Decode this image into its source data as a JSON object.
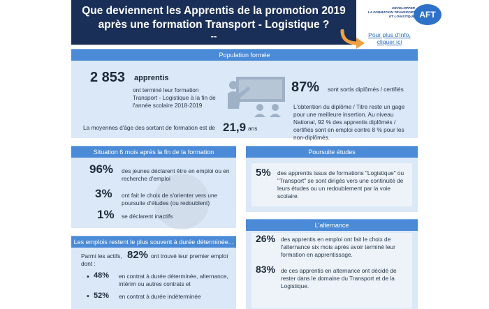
{
  "header": {
    "title_line1": "Que deviennent les Apprentis de la promotion 2019",
    "title_line2": "après une formation Transport - Logistique ?",
    "title_line3": "--"
  },
  "logo": {
    "tagline_1": "DÉVELOPPER",
    "tagline_2": "LA FORMATION TRANSPORT",
    "tagline_3": "ET LOGISTIQUE",
    "brand": "AFT"
  },
  "info_link": "Pour plus d'info, cliquer ici",
  "population": {
    "title": "Population formée",
    "count": "2 853",
    "count_label": "apprentis",
    "count_desc": "ont terminé leur formation Transport - Logistique à la fin de l'année scolaire 2018-2019",
    "age_label": "La moyennes d'âge des sortant de formation est de",
    "age_value": "21,9",
    "age_unit": "ans",
    "graduated_pct": "87%",
    "graduated_label": "sont sortis diplômés / certifiés",
    "graduated_desc": "L'obtention du diplôme / Titre reste un gage pour une meilleure insertion. Au niveau National, 92 % des apprentis diplômés / certifiés sont en emploi contre 8 % pour les non-diplômés."
  },
  "situation": {
    "title": "Situation 6 mois après la fin de la formation",
    "items": [
      {
        "pct": "96%",
        "text": "des jeunes déclarent être en emploi ou en recherche d'emploi"
      },
      {
        "pct": "3%",
        "text": "ont fait le choix de s'orienter vers une poursuite d'études (ou redoublent)"
      },
      {
        "pct": "1%",
        "text": "se déclarent inactifs"
      }
    ]
  },
  "contracts": {
    "title": "Les emplois restent le plus souvent à durée déterminée...",
    "intro_a": "Parmi les actifs,",
    "intro_pct": "82%",
    "intro_b": "ont trouvé leur premier emploi dont :",
    "items": [
      {
        "pct": "48%",
        "text": "en contrat à durée déterminée, alternance, intérim ou autres contrats et"
      },
      {
        "pct": "52%",
        "text": "en contrat à durée indéterminée"
      }
    ]
  },
  "studies": {
    "title": "Poursuite études",
    "pct": "5%",
    "text": "des apprentis issus de formations \"Logistique\" ou \"Transport\" se sont dirigés vers une continuité de leurs études ou un redoublement par la voie scolaire."
  },
  "alternance": {
    "title": "L'alternance",
    "items": [
      {
        "pct": "26%",
        "text": "des apprentis en emploi ont fait le choix de l'alternance six mois après avoir terminé leur formation en apprentissage."
      },
      {
        "pct": "83%",
        "text": "de ces apprentis en alternance ont décidé de rester dans le domaine du Transport et de la Logistique."
      }
    ]
  },
  "colors": {
    "header_bg": "#1a2f57",
    "bar_bg": "#4a8ad6",
    "panel_bg": "#dbe8f7",
    "link": "#2e6fc0",
    "arrow": "#f0a040"
  }
}
